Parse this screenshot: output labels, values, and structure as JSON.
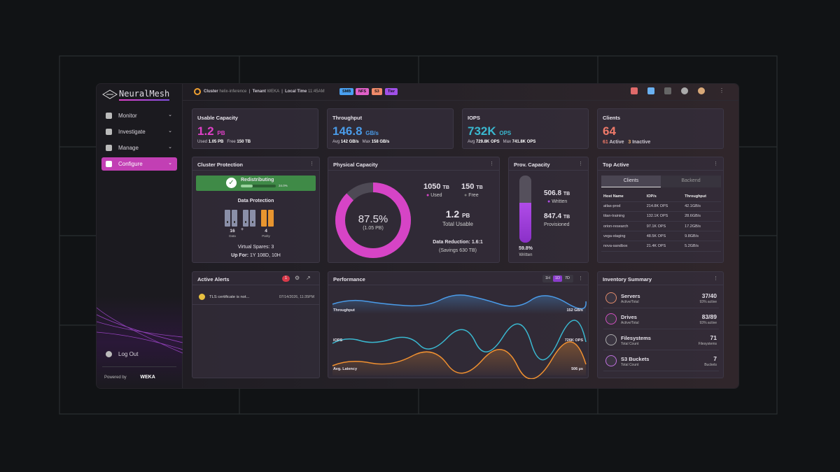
{
  "sidebar": {
    "logo": "NeuralMesh",
    "nav": [
      "Monitor",
      "Investigate",
      "Manage",
      "Configure"
    ],
    "logout": "Log Out",
    "powered_by": "Powered by",
    "brand": "WEKA"
  },
  "topbar": {
    "cluster_label": "Cluster",
    "cluster": "helix-inference",
    "tenant_label": "Tenant",
    "tenant": "WEKA",
    "time_label": "Local Time",
    "time": "11:45AM",
    "tags": [
      "SMB",
      "NFS",
      "S3",
      "Tier"
    ]
  },
  "usable": {
    "title": "Usable Capacity",
    "value": 1.2,
    "unit": "PB",
    "used_label": "Used",
    "used": 1.05,
    "used_unit": "PB",
    "free_label": "Free",
    "free": 150,
    "free_unit": "TB"
  },
  "throughput": {
    "title": "Throughput",
    "value": 146.8,
    "unit": "GB/s",
    "avg_label": "Avg",
    "avg": 142,
    "avg_unit": "GB/s",
    "max_label": "Max",
    "max": 158,
    "max_unit": "GB/s"
  },
  "iops": {
    "title": "IOPS",
    "value": "732K",
    "unit": "OPS",
    "avg_label": "Avg",
    "avg": "729.8K",
    "avg_unit": "OPS",
    "max_label": "Max",
    "max": "741.8K",
    "max_unit": "OPS"
  },
  "clients": {
    "title": "Clients",
    "value": 64,
    "active": 61,
    "active_label": "Active",
    "inactive": 3,
    "inactive_label": "Inactive"
  },
  "protection": {
    "title": "Cluster Protection",
    "status": "Redistributing",
    "progress": {
      "value": 34.0,
      "label": "34.0%"
    },
    "dp_title": "Data Protection",
    "data": 16,
    "data_label": "Data",
    "plus": "+",
    "parity": 4,
    "parity_label": "Parity",
    "spares": "Virtual Spares: 3",
    "uptime_label": "Up For:",
    "uptime": "1Y 108D, 10H"
  },
  "physical": {
    "title": "Physical Capacity",
    "donut": {
      "value": 87.5,
      "label": "87.5%"
    },
    "donut_sub": "(1.05 PB)",
    "used": 1050,
    "used_unit": "TB",
    "used_label": "Used",
    "free": 150,
    "free_unit": "TB",
    "free_label": "Free",
    "total": 1.2,
    "total_unit": "PB",
    "total_label": "Total Usable",
    "reduction": "Data Reduction: 1.6:1",
    "savings": "(Savings 630 TB)"
  },
  "prov": {
    "title": "Prov. Capacity",
    "written": 506.8,
    "written_unit": "TB",
    "written_label": "Written",
    "provisioned": 847.4,
    "provisioned_unit": "TB",
    "provisioned_label": "Provisioned",
    "percent": {
      "value": 59.8,
      "label": "59.8%"
    },
    "percent_label": "Written"
  },
  "top_active": {
    "title": "Top Active",
    "tabs": [
      "Clients",
      "Backend"
    ],
    "columns": [
      "Host Name",
      "IOP/s",
      "Throughput"
    ],
    "rows": [
      [
        "atlas-prod",
        "214.8K OPS",
        "42.1GB/s"
      ],
      [
        "titan-training",
        "132.1K OPS",
        "28.6GB/s"
      ],
      [
        "orion-research",
        "97.1K OPS",
        "17.2GB/s"
      ],
      [
        "vega-staging",
        "48.5K OPS",
        "9.8GB/s"
      ],
      [
        "nova-sandbox",
        "21.4K OPS",
        "5.2GB/s"
      ]
    ]
  },
  "alerts": {
    "title": "Active Alerts",
    "count": 1,
    "items": [
      {
        "text": "TLS certificate is not...",
        "time": "07/14/2026, 11:35PM"
      }
    ]
  },
  "performance": {
    "title": "Performance",
    "ranges": [
      "1H",
      "1D",
      "7D"
    ],
    "metrics": [
      {
        "name": "Throughput",
        "value": "152 GB/s"
      },
      {
        "name": "IOPS",
        "value": "726K OPS"
      },
      {
        "name": "Avg. Latency",
        "value": "506 µs"
      }
    ]
  },
  "inventory": {
    "title": "Inventory Summary",
    "items": [
      {
        "name": "Servers",
        "sub": "Active/Total",
        "value": "37/40",
        "note": "93% active"
      },
      {
        "name": "Drives",
        "sub": "Active/Total",
        "value": "83/89",
        "note": "93% active"
      },
      {
        "name": "Filesystems",
        "sub": "Total Count",
        "value": 71,
        "note": "Filesystems"
      },
      {
        "name": "S3 Buckets",
        "sub": "Total Count",
        "value": 7,
        "note": "Buckets"
      }
    ]
  }
}
